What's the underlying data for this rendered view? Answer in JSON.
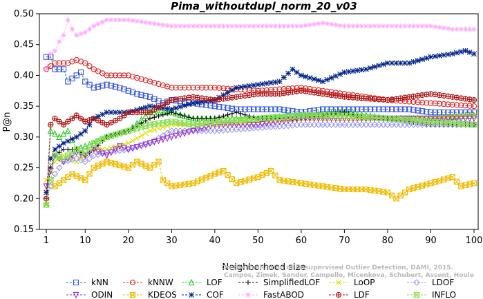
{
  "chart_data": {
    "type": "line",
    "title": "Pima_withoutdupl_norm_20_v03",
    "xlabel": "Neighborhood size",
    "ylabel": "P@n",
    "xlim": [
      1,
      100
    ],
    "ylim": [
      0.15,
      0.5
    ],
    "xticks": [
      1,
      10,
      20,
      30,
      40,
      50,
      60,
      70,
      80,
      90,
      100
    ],
    "yticks": [
      0.15,
      0.2,
      0.25,
      0.3,
      0.35,
      0.4,
      0.45,
      0.5
    ],
    "ytick_labels": [
      "0.15",
      "0.20",
      "0.25",
      "0.30",
      "0.35",
      "0.40",
      "0.45",
      "0.50"
    ],
    "credit_lines": [
      "On the Evaluation of Unsupervised Outlier Detection, DAMI, 2015.",
      "Campos, Zimek, Sander, Campello, Micenkova, Schubert, Assent, Houle"
    ],
    "legend_position": "bottom",
    "series": [
      {
        "name": "kNN",
        "color": "#3355dd",
        "marker": "square",
        "keypoints": [
          [
            1,
            0.43
          ],
          [
            2,
            0.43
          ],
          [
            3,
            0.41
          ],
          [
            5,
            0.41
          ],
          [
            6,
            0.39
          ],
          [
            8,
            0.4
          ],
          [
            9,
            0.405
          ],
          [
            10,
            0.39
          ],
          [
            12,
            0.38
          ],
          [
            15,
            0.385
          ],
          [
            18,
            0.38
          ],
          [
            22,
            0.37
          ],
          [
            25,
            0.365
          ],
          [
            28,
            0.355
          ],
          [
            30,
            0.36
          ],
          [
            35,
            0.355
          ],
          [
            40,
            0.35
          ],
          [
            45,
            0.345
          ],
          [
            55,
            0.345
          ],
          [
            60,
            0.34
          ],
          [
            65,
            0.345
          ],
          [
            75,
            0.345
          ],
          [
            85,
            0.345
          ],
          [
            90,
            0.34
          ],
          [
            100,
            0.34
          ]
        ]
      },
      {
        "name": "kNNW",
        "color": "#dd2222",
        "marker": "circle",
        "keypoints": [
          [
            1,
            0.41
          ],
          [
            3,
            0.42
          ],
          [
            6,
            0.42
          ],
          [
            8,
            0.425
          ],
          [
            10,
            0.42
          ],
          [
            12,
            0.41
          ],
          [
            15,
            0.4
          ],
          [
            20,
            0.4
          ],
          [
            25,
            0.39
          ],
          [
            30,
            0.38
          ],
          [
            40,
            0.38
          ],
          [
            50,
            0.375
          ],
          [
            60,
            0.38
          ],
          [
            70,
            0.37
          ],
          [
            80,
            0.36
          ],
          [
            90,
            0.355
          ],
          [
            100,
            0.35
          ]
        ]
      },
      {
        "name": "LOF",
        "color": "#22cc22",
        "marker": "triangle",
        "keypoints": [
          [
            1,
            0.19
          ],
          [
            2,
            0.31
          ],
          [
            4,
            0.3
          ],
          [
            6,
            0.31
          ],
          [
            8,
            0.28
          ],
          [
            10,
            0.285
          ],
          [
            12,
            0.29
          ],
          [
            15,
            0.3
          ],
          [
            20,
            0.31
          ],
          [
            25,
            0.34
          ],
          [
            30,
            0.34
          ],
          [
            35,
            0.33
          ],
          [
            40,
            0.33
          ],
          [
            50,
            0.33
          ],
          [
            60,
            0.335
          ],
          [
            70,
            0.34
          ],
          [
            80,
            0.33
          ],
          [
            90,
            0.33
          ],
          [
            100,
            0.335
          ]
        ]
      },
      {
        "name": "SimplifiedLOF",
        "color": "#000000",
        "marker": "plus",
        "keypoints": [
          [
            1,
            0.2
          ],
          [
            2,
            0.25
          ],
          [
            3,
            0.27
          ],
          [
            5,
            0.28
          ],
          [
            8,
            0.28
          ],
          [
            10,
            0.27
          ],
          [
            12,
            0.28
          ],
          [
            15,
            0.3
          ],
          [
            20,
            0.31
          ],
          [
            25,
            0.33
          ],
          [
            30,
            0.34
          ],
          [
            35,
            0.33
          ],
          [
            40,
            0.33
          ],
          [
            45,
            0.34
          ],
          [
            50,
            0.33
          ],
          [
            55,
            0.33
          ],
          [
            60,
            0.33
          ],
          [
            65,
            0.335
          ],
          [
            70,
            0.34
          ],
          [
            75,
            0.33
          ],
          [
            80,
            0.33
          ],
          [
            85,
            0.325
          ],
          [
            90,
            0.32
          ],
          [
            100,
            0.32
          ]
        ]
      },
      {
        "name": "LoOP",
        "color": "#dddd00",
        "marker": "x",
        "keypoints": [
          [
            1,
            0.23
          ],
          [
            3,
            0.26
          ],
          [
            5,
            0.27
          ],
          [
            8,
            0.26
          ],
          [
            10,
            0.27
          ],
          [
            12,
            0.28
          ],
          [
            15,
            0.28
          ],
          [
            20,
            0.29
          ],
          [
            25,
            0.31
          ],
          [
            30,
            0.32
          ],
          [
            35,
            0.32
          ],
          [
            40,
            0.32
          ],
          [
            50,
            0.325
          ],
          [
            60,
            0.33
          ],
          [
            70,
            0.33
          ],
          [
            80,
            0.33
          ],
          [
            90,
            0.33
          ],
          [
            100,
            0.335
          ]
        ]
      },
      {
        "name": "LDOF",
        "color": "#9999ee",
        "marker": "diamond",
        "keypoints": [
          [
            1,
            0.2
          ],
          [
            3,
            0.24
          ],
          [
            5,
            0.26
          ],
          [
            8,
            0.265
          ],
          [
            10,
            0.26
          ],
          [
            12,
            0.27
          ],
          [
            15,
            0.275
          ],
          [
            20,
            0.28
          ],
          [
            25,
            0.29
          ],
          [
            30,
            0.31
          ],
          [
            35,
            0.31
          ],
          [
            40,
            0.31
          ],
          [
            50,
            0.315
          ],
          [
            60,
            0.32
          ],
          [
            70,
            0.32
          ],
          [
            80,
            0.32
          ],
          [
            90,
            0.32
          ],
          [
            100,
            0.32
          ]
        ]
      },
      {
        "name": "ODIN",
        "color": "#9933cc",
        "marker": "triangle-down",
        "keypoints": [
          [
            1,
            0.22
          ],
          [
            3,
            0.27
          ],
          [
            5,
            0.26
          ],
          [
            8,
            0.275
          ],
          [
            10,
            0.27
          ],
          [
            12,
            0.28
          ],
          [
            15,
            0.27
          ],
          [
            18,
            0.285
          ],
          [
            20,
            0.28
          ],
          [
            25,
            0.29
          ],
          [
            30,
            0.3
          ],
          [
            35,
            0.31
          ],
          [
            40,
            0.32
          ],
          [
            50,
            0.32
          ],
          [
            60,
            0.33
          ],
          [
            70,
            0.33
          ],
          [
            80,
            0.33
          ],
          [
            90,
            0.33
          ],
          [
            100,
            0.33
          ]
        ]
      },
      {
        "name": "KDEOS",
        "color": "#eebb00",
        "marker": "square-x",
        "keypoints": [
          [
            1,
            0.19
          ],
          [
            2,
            0.23
          ],
          [
            3,
            0.22
          ],
          [
            5,
            0.23
          ],
          [
            7,
            0.24
          ],
          [
            10,
            0.23
          ],
          [
            12,
            0.25
          ],
          [
            15,
            0.26
          ],
          [
            20,
            0.25
          ],
          [
            22,
            0.26
          ],
          [
            25,
            0.25
          ],
          [
            27,
            0.26
          ],
          [
            28,
            0.23
          ],
          [
            30,
            0.22
          ],
          [
            35,
            0.225
          ],
          [
            40,
            0.24
          ],
          [
            42,
            0.245
          ],
          [
            45,
            0.225
          ],
          [
            50,
            0.235
          ],
          [
            53,
            0.245
          ],
          [
            55,
            0.23
          ],
          [
            60,
            0.225
          ],
          [
            65,
            0.22
          ],
          [
            70,
            0.215
          ],
          [
            75,
            0.215
          ],
          [
            80,
            0.21
          ],
          [
            82,
            0.2
          ],
          [
            85,
            0.215
          ],
          [
            90,
            0.225
          ],
          [
            95,
            0.235
          ],
          [
            97,
            0.22
          ],
          [
            100,
            0.225
          ]
        ]
      },
      {
        "name": "COF",
        "color": "#002288",
        "marker": "star",
        "keypoints": [
          [
            1,
            0.21
          ],
          [
            2,
            0.265
          ],
          [
            3,
            0.28
          ],
          [
            5,
            0.29
          ],
          [
            8,
            0.3
          ],
          [
            10,
            0.31
          ],
          [
            12,
            0.33
          ],
          [
            15,
            0.34
          ],
          [
            20,
            0.34
          ],
          [
            25,
            0.35
          ],
          [
            30,
            0.345
          ],
          [
            35,
            0.355
          ],
          [
            40,
            0.36
          ],
          [
            45,
            0.38
          ],
          [
            50,
            0.385
          ],
          [
            55,
            0.39
          ],
          [
            58,
            0.41
          ],
          [
            60,
            0.4
          ],
          [
            65,
            0.39
          ],
          [
            70,
            0.405
          ],
          [
            75,
            0.41
          ],
          [
            80,
            0.42
          ],
          [
            85,
            0.42
          ],
          [
            90,
            0.43
          ],
          [
            95,
            0.435
          ],
          [
            98,
            0.44
          ],
          [
            100,
            0.435
          ]
        ]
      },
      {
        "name": "FastABOD",
        "color": "#ffaaff",
        "marker": "asterisk",
        "keypoints": [
          [
            1,
            0.41
          ],
          [
            2,
            0.435
          ],
          [
            3,
            0.44
          ],
          [
            4,
            0.455
          ],
          [
            5,
            0.465
          ],
          [
            6,
            0.49
          ],
          [
            7,
            0.475
          ],
          [
            8,
            0.465
          ],
          [
            10,
            0.47
          ],
          [
            12,
            0.48
          ],
          [
            15,
            0.49
          ],
          [
            20,
            0.49
          ],
          [
            25,
            0.485
          ],
          [
            30,
            0.48
          ],
          [
            40,
            0.48
          ],
          [
            50,
            0.48
          ],
          [
            60,
            0.48
          ],
          [
            65,
            0.485
          ],
          [
            70,
            0.48
          ],
          [
            80,
            0.48
          ],
          [
            90,
            0.48
          ],
          [
            95,
            0.475
          ],
          [
            100,
            0.475
          ]
        ]
      },
      {
        "name": "LDF",
        "color": "#aa1111",
        "marker": "circle-plus",
        "keypoints": [
          [
            1,
            0.2
          ],
          [
            2,
            0.32
          ],
          [
            3,
            0.33
          ],
          [
            5,
            0.32
          ],
          [
            8,
            0.335
          ],
          [
            10,
            0.325
          ],
          [
            12,
            0.33
          ],
          [
            15,
            0.32
          ],
          [
            18,
            0.33
          ],
          [
            20,
            0.34
          ],
          [
            25,
            0.34
          ],
          [
            30,
            0.36
          ],
          [
            35,
            0.365
          ],
          [
            40,
            0.36
          ],
          [
            45,
            0.365
          ],
          [
            50,
            0.37
          ],
          [
            55,
            0.37
          ],
          [
            60,
            0.375
          ],
          [
            65,
            0.37
          ],
          [
            70,
            0.365
          ],
          [
            80,
            0.36
          ],
          [
            85,
            0.365
          ],
          [
            90,
            0.37
          ],
          [
            100,
            0.36
          ]
        ]
      },
      {
        "name": "INFLO",
        "color": "#88dd55",
        "marker": "square-x",
        "keypoints": [
          [
            1,
            0.19
          ],
          [
            3,
            0.27
          ],
          [
            5,
            0.265
          ],
          [
            8,
            0.28
          ],
          [
            10,
            0.275
          ],
          [
            12,
            0.29
          ],
          [
            15,
            0.3
          ],
          [
            20,
            0.31
          ],
          [
            25,
            0.32
          ],
          [
            30,
            0.325
          ],
          [
            35,
            0.32
          ],
          [
            40,
            0.325
          ],
          [
            50,
            0.33
          ],
          [
            60,
            0.335
          ],
          [
            70,
            0.335
          ],
          [
            80,
            0.33
          ],
          [
            90,
            0.325
          ],
          [
            100,
            0.32
          ]
        ]
      }
    ]
  }
}
